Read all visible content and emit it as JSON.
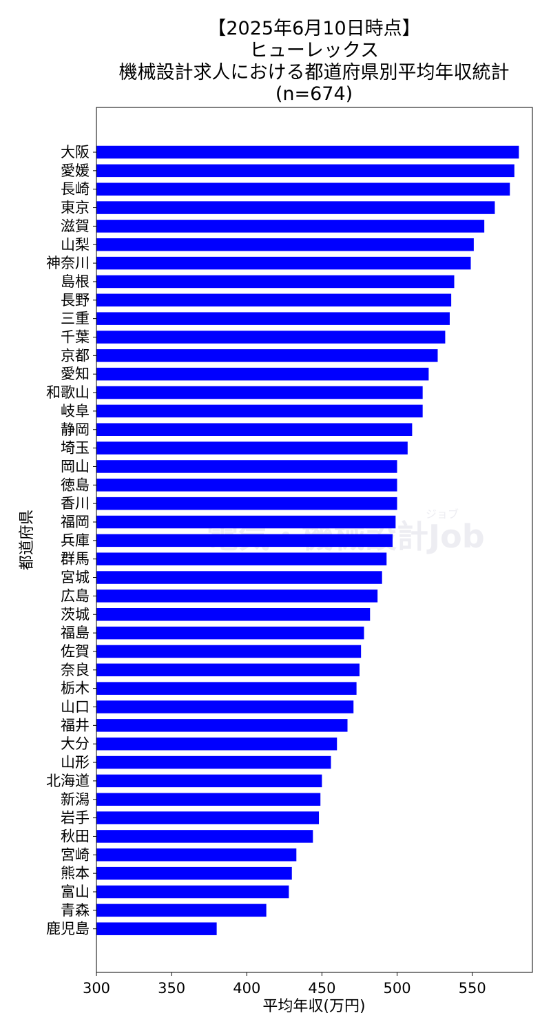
{
  "chart_data": {
    "type": "bar",
    "orientation": "horizontal",
    "title": [
      "【2025年6月10日時点】",
      "ヒューレックス",
      "機械設計求人における都道府県別平均年収統計",
      "(n=674)"
    ],
    "xlabel": "平均年収(万円)",
    "ylabel": "都道府県",
    "xlim": [
      300,
      590
    ],
    "xticks": [
      300,
      350,
      400,
      450,
      500,
      550
    ],
    "grid": false,
    "bar_color": "#0000ff",
    "watermark": {
      "main": "電気・機械設計Job",
      "small": "ジョブ"
    },
    "categories": [
      "大阪",
      "愛媛",
      "長崎",
      "東京",
      "滋賀",
      "山梨",
      "神奈川",
      "島根",
      "長野",
      "三重",
      "千葉",
      "京都",
      "愛知",
      "和歌山",
      "岐阜",
      "静岡",
      "埼玉",
      "岡山",
      "徳島",
      "香川",
      "福岡",
      "兵庫",
      "群馬",
      "宮城",
      "広島",
      "茨城",
      "福島",
      "佐賀",
      "奈良",
      "栃木",
      "山口",
      "福井",
      "大分",
      "山形",
      "北海道",
      "新潟",
      "岩手",
      "秋田",
      "宮崎",
      "熊本",
      "富山",
      "青森",
      "鹿児島"
    ],
    "values": [
      581,
      578,
      575,
      565,
      558,
      551,
      549,
      538,
      536,
      535,
      532,
      527,
      521,
      517,
      517,
      510,
      507,
      500,
      500,
      500,
      499,
      497,
      493,
      490,
      487,
      482,
      478,
      476,
      475,
      473,
      471,
      467,
      460,
      456,
      450,
      449,
      448,
      444,
      433,
      430,
      428,
      413,
      380
    ]
  }
}
